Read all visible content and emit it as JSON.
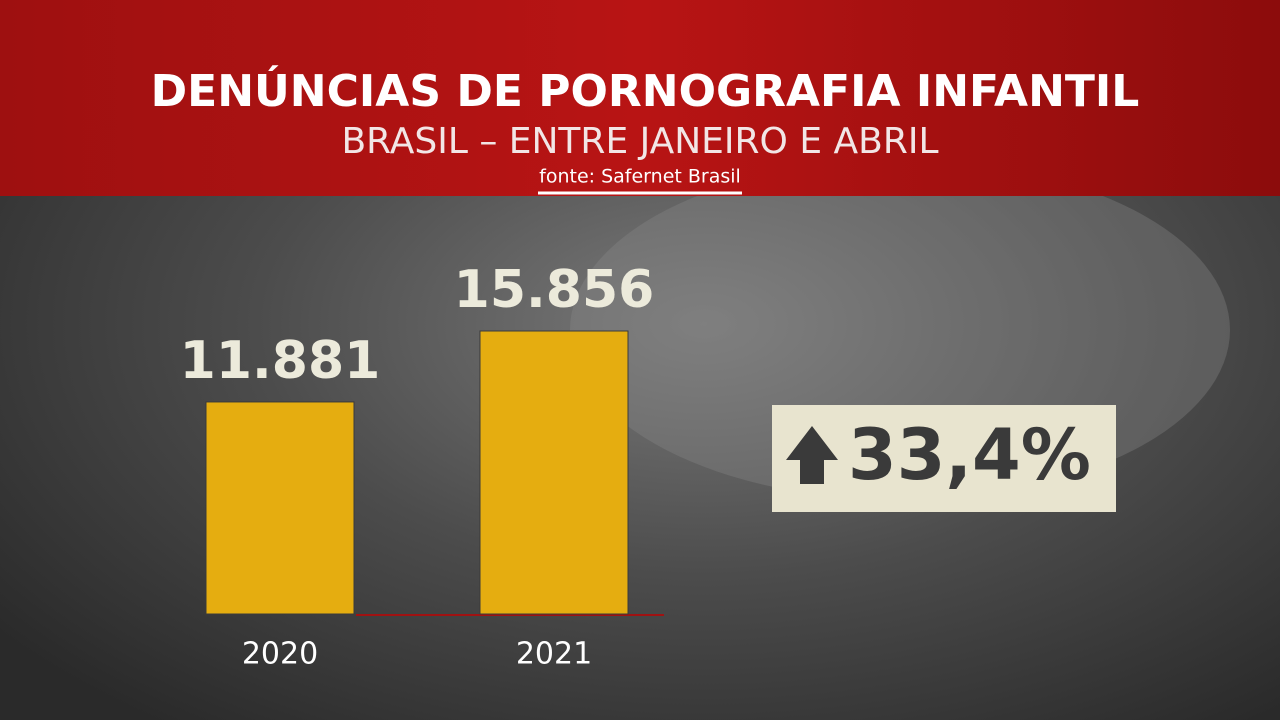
{
  "chart_data": {
    "type": "bar",
    "title": "DENÚNCIAS DE PORNOGRAFIA INFANTIL",
    "subtitle": "BRASIL – ENTRE JANEIRO E ABRIL",
    "source": "fonte: Safernet Brasil",
    "categories": [
      "2020",
      "2021"
    ],
    "values": [
      11881,
      15856
    ],
    "value_labels": [
      "11.881",
      "15.856"
    ],
    "color": "#e5ad10",
    "annotation": "33,4%"
  }
}
